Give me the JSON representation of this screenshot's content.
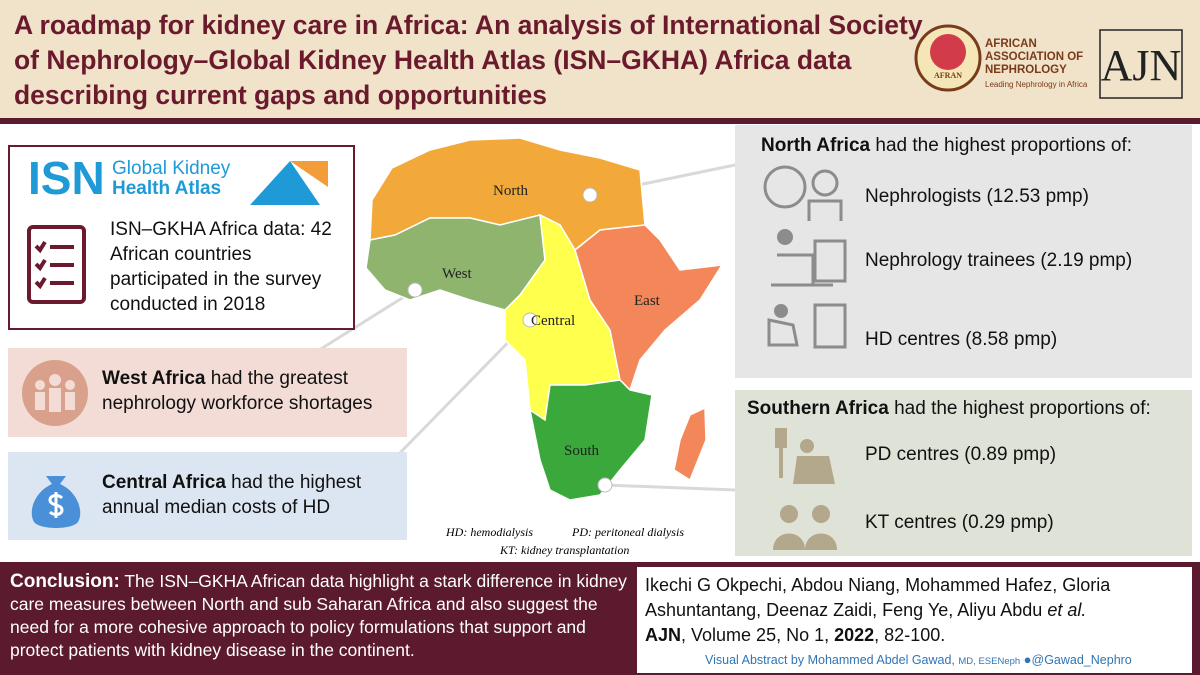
{
  "header": {
    "title": "A roadmap for kidney care in Africa: An analysis of International Society of Nephrology–Global Kidney Health Atlas (ISN–GKHA) Africa data describing current gaps and opportunities",
    "logos": {
      "afran_badge": "AFRAN",
      "association": "AFRICAN ASSOCIATION OF NEPHROLOGY",
      "tagline": "Leading Nephrology in Africa",
      "journal": "AJN"
    }
  },
  "isn_box": {
    "logo_isn": "ISN",
    "logo_line1": "Global Kidney",
    "logo_line2": "Health Atlas",
    "text": "ISN–GKHA Africa data: 42 African countries participated in the survey conducted in 2018"
  },
  "map": {
    "north": "North",
    "west": "West",
    "central": "Central",
    "east": "East",
    "south": "South"
  },
  "findings": {
    "west": {
      "bold": "West Africa",
      "text": "had the greatest nephrology workforce shortages"
    },
    "central": {
      "bold": "Central Africa",
      "text": "had the highest annual median costs of HD"
    }
  },
  "north_panel": {
    "bold": "North Africa",
    "text": "had the highest proportions of:",
    "items": [
      "Nephrologists (12.53 pmp)",
      "Nephrology trainees (2.19 pmp)",
      "HD centres (8.58 pmp)"
    ]
  },
  "south_panel": {
    "bold": "Southern Africa",
    "text": "had the highest proportions of:",
    "items": [
      "PD centres (0.89 pmp)",
      "KT centres (0.29 pmp)"
    ]
  },
  "abbreviations": [
    "HD: hemodialysis",
    "PD: peritoneal dialysis",
    "KT: kidney transplantation"
  ],
  "conclusion": {
    "label": "Conclusion:",
    "text": "The ISN–GKHA African data highlight a stark difference in kidney care measures between North and sub Saharan Africa and also suggest the need for a more cohesive approach to policy formulations that support and protect patients with kidney disease in the continent."
  },
  "citation": {
    "authors": "Ikechi G Okpechi, Abdou Niang, Mohammed Hafez, Gloria Ashuntantang, Deenaz Zaidi, Feng Ye, Aliyu Abdu",
    "et_al": "et al.",
    "journal": "AJN",
    "volume": ", Volume 25, No 1,",
    "year": "2022",
    "pages": ", 82-100."
  },
  "credit": {
    "text": "Visual Abstract by Mohammed Abdel Gawad,",
    "degrees": "MD, ESENeph",
    "handle": "@Gawad_Nephro"
  }
}
